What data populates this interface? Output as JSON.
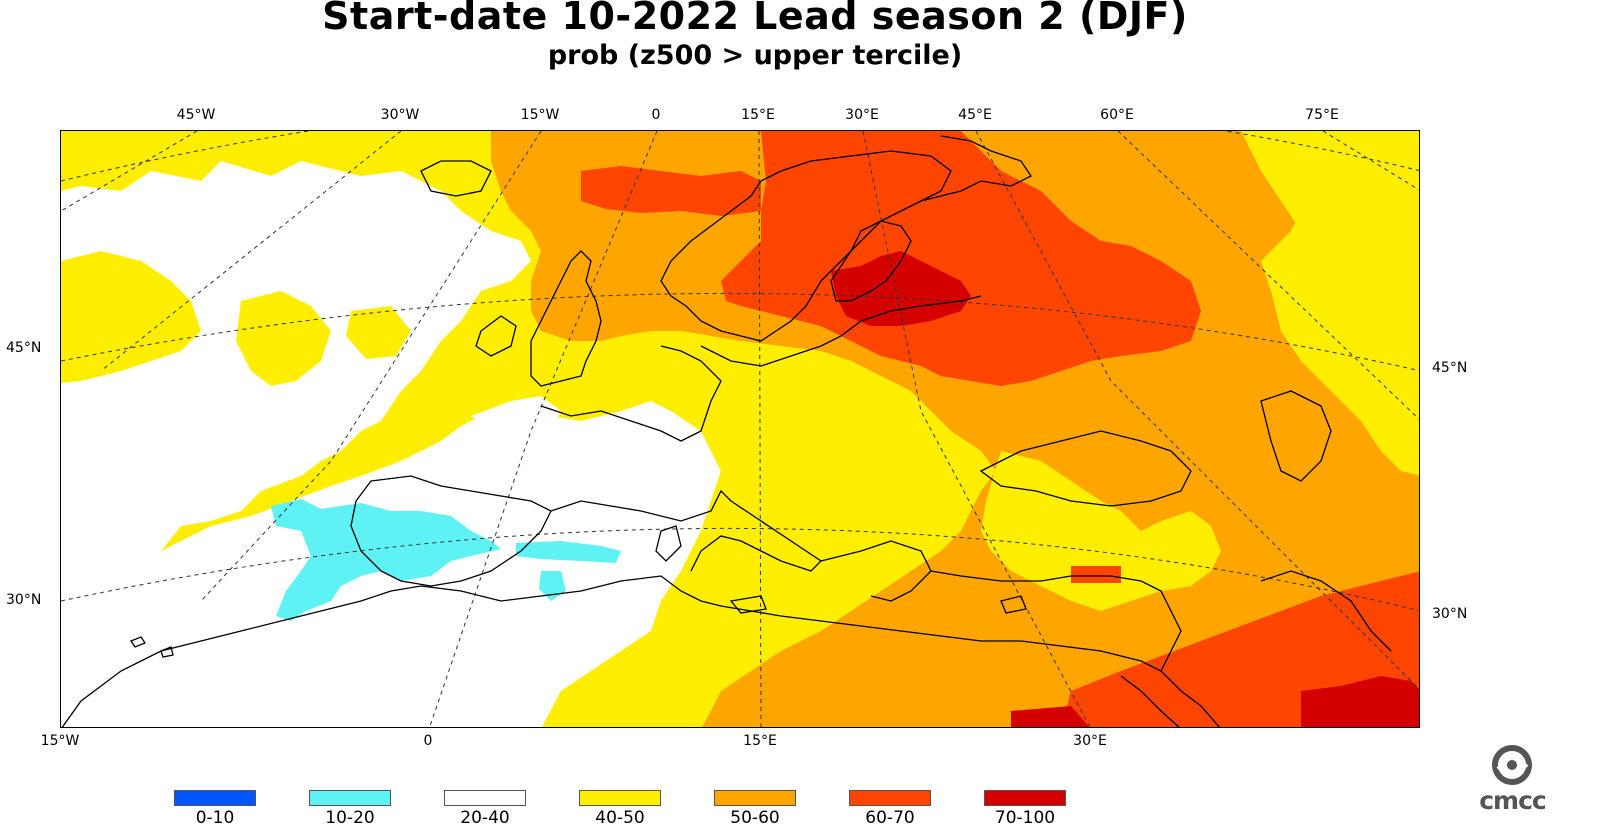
{
  "title": "Start-date 10-2022 Lead season 2 (DJF)",
  "subtitle": "prob (z500 > upper tercile)",
  "top_lon_labels": [
    "45°W",
    "30°W",
    "15°W",
    "0",
    "15°E",
    "30°E",
    "45°E",
    "60°E",
    "75°E"
  ],
  "bottom_lon_labels": [
    "15°W",
    "0",
    "15°E",
    "30°E"
  ],
  "left_lat_labels": [
    "45°N",
    "30°N"
  ],
  "right_lat_labels": [
    "45°N",
    "30°N"
  ],
  "legend": [
    {
      "label": "0-10",
      "color": "#0055ff"
    },
    {
      "label": "10-20",
      "color": "#5ef2f5"
    },
    {
      "label": "20-40",
      "color": "#ffffff"
    },
    {
      "label": "40-50",
      "color": "#ffee00"
    },
    {
      "label": "50-60",
      "color": "#ffa500"
    },
    {
      "label": "60-70",
      "color": "#ff4500"
    },
    {
      "label": "70-100",
      "color": "#d40000"
    }
  ],
  "logo_text": "cmcc",
  "logo_icon": "cmcc-swirl-icon"
}
